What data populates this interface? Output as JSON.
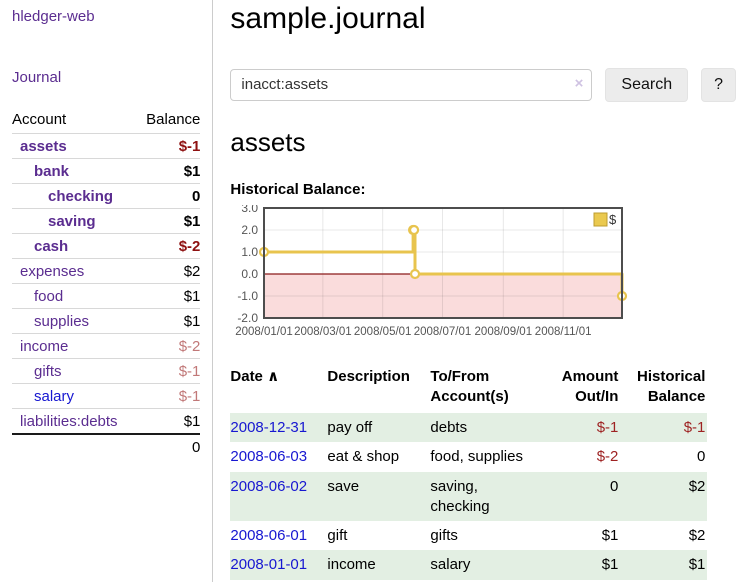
{
  "sidebar": {
    "app_title": "hledger-web",
    "nav_journal": "Journal",
    "accounts": {
      "col_account": "Account",
      "col_balance": "Balance",
      "rows": [
        {
          "name": "assets",
          "balance": "$-1"
        },
        {
          "name": "bank",
          "balance": "$1"
        },
        {
          "name": "checking",
          "balance": "0"
        },
        {
          "name": "saving",
          "balance": "$1"
        },
        {
          "name": "cash",
          "balance": "$-2"
        },
        {
          "name": "expenses",
          "balance": "$2"
        },
        {
          "name": "food",
          "balance": "$1"
        },
        {
          "name": "supplies",
          "balance": "$1"
        },
        {
          "name": "income",
          "balance": "$-2"
        },
        {
          "name": "gifts",
          "balance": "$-1"
        },
        {
          "name": "salary",
          "balance": "$-1"
        },
        {
          "name": "liabilities:debts",
          "balance": "$1"
        }
      ],
      "total": "0"
    }
  },
  "header": {
    "title": "sample.journal"
  },
  "search": {
    "value": "inacct:assets",
    "clear_icon": "×",
    "button_label": "Search",
    "help_label": "?"
  },
  "register": {
    "heading": "assets",
    "chart_label": "Historical Balance:",
    "columns": {
      "date": "Date",
      "sort_indicator": "∧",
      "description": "Description",
      "tofrom": "To/From Account(s)",
      "amount": "Amount Out/In",
      "balance": "Historical Balance"
    },
    "rows": [
      {
        "date": "2008-12-31",
        "description": "pay off",
        "tofrom": "debts",
        "amount": "$-1",
        "balance": "$-1"
      },
      {
        "date": "2008-06-03",
        "description": "eat & shop",
        "tofrom": "food, supplies",
        "amount": "$-2",
        "balance": "0"
      },
      {
        "date": "2008-06-02",
        "description": "save",
        "tofrom": "saving, checking",
        "amount": "0",
        "balance": "$2"
      },
      {
        "date": "2008-06-01",
        "description": "gift",
        "tofrom": "gifts",
        "amount": "$1",
        "balance": "$2"
      },
      {
        "date": "2008-01-01",
        "description": "income",
        "tofrom": "salary",
        "amount": "$1",
        "balance": "$1"
      }
    ]
  },
  "chart_data": {
    "type": "line",
    "title": "Historical Balance:",
    "step": true,
    "series": [
      {
        "name": "$",
        "points": [
          [
            "2008-01-01",
            1
          ],
          [
            "2008-06-01",
            2
          ],
          [
            "2008-06-02",
            2
          ],
          [
            "2008-06-03",
            0
          ],
          [
            "2008-12-31",
            -1
          ]
        ]
      }
    ],
    "xlim": [
      "2008-01-01",
      "2008-12-31"
    ],
    "ylim": [
      -2,
      3
    ],
    "x_ticks": [
      "2008/01/01",
      "2008/03/01",
      "2008/05/01",
      "2008/07/01",
      "2008/09/01",
      "2008/11/01"
    ],
    "y_ticks": [
      3.0,
      2.0,
      1.0,
      0.0,
      -1.0,
      -2.0
    ],
    "legend": [
      "$"
    ],
    "legend_position": "top-right",
    "grid": true,
    "colors": {
      "line": "#e8c44e",
      "marker_fill": "#ffffff",
      "legend_swatch": "#eac94f",
      "legend_swatch_border": "#bd9c2f",
      "fill_below_zero": "#fadcdc",
      "zero_line": "#8b1a1a",
      "plot_border": "#4d4d4d",
      "tick_label": "#555555"
    }
  }
}
